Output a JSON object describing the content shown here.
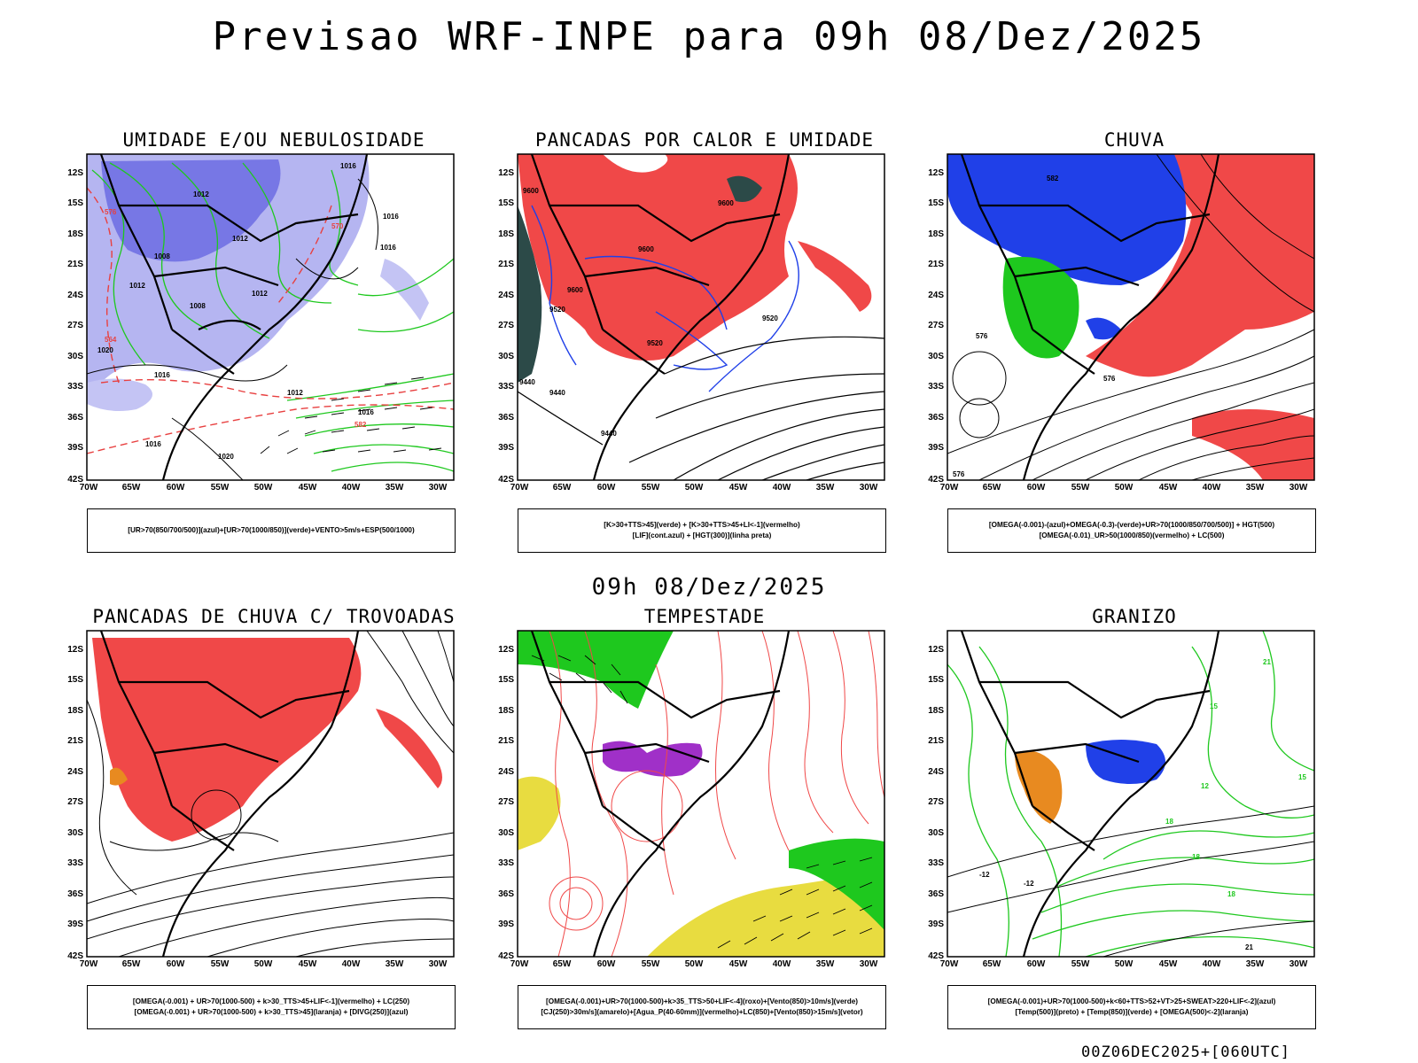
{
  "header": {
    "title": "Previsao WRF-INPE  para 09h 08/Dez/2025"
  },
  "mid_label": "09h 08/Dez/2025",
  "footer": {
    "stamp": "00Z06DEC2025+[060UTC]"
  },
  "axes": {
    "lat_labels": [
      "12S",
      "15S",
      "18S",
      "21S",
      "24S",
      "27S",
      "30S",
      "33S",
      "36S",
      "39S",
      "42S"
    ],
    "lon_labels": [
      "70W",
      "65W",
      "60W",
      "55W",
      "50W",
      "45W",
      "40W",
      "35W",
      "30W"
    ]
  },
  "colors": {
    "red_fill": "#f04848",
    "blue_fill": "#2040e8",
    "green": "#1ec81e",
    "lavender": "#a8a8ee",
    "yellow": "#e8dc40",
    "purple": "#a030c8",
    "orange": "#e88a20",
    "dark_teal": "#2c4a48"
  },
  "panels": [
    {
      "title": "UMIDADE E/OU NEBULOSIDADE",
      "legend": [
        "[UR>70(850/700/500)](azul)+[UR>70(1000/850)](verde)+VENTO>5m/s+ESP(500/1000)"
      ],
      "labels": [
        "1016",
        "1012",
        "1012",
        "1008",
        "1012",
        "1008",
        "1012",
        "1016",
        "1016",
        "1020",
        "1016",
        "1020",
        "1016",
        "1016",
        "570",
        "576",
        "564",
        "582",
        "1012"
      ]
    },
    {
      "title": "PANCADAS POR CALOR E UMIDADE",
      "legend": [
        "[K>30+TTS>45](verde) + [K>30+TTS>45+LI<-1](vermelho)",
        "[LIF](cont.azul) + [HGT(300)](linha preta)"
      ],
      "labels": [
        "9600",
        "9600",
        "9600",
        "9600",
        "9520",
        "9520",
        "9520",
        "9440",
        "9440",
        "9440"
      ]
    },
    {
      "title": "CHUVA",
      "legend": [
        "[OMEGA(-0.001)-(azul)+OMEGA(-0.3)-(verde)+UR>70(1000/850/700/500)] + HGT(500)",
        "[OMEGA(-0.01)_UR>50(1000/850)(vermelho) + LC(500)"
      ],
      "labels": [
        "582",
        "576",
        "576",
        "576"
      ]
    },
    {
      "title": "PANCADAS DE CHUVA C/ TROVOADAS",
      "legend": [
        "[OMEGA(-0.001) + UR>70(1000-500) + k>30_TTS>45+LIF<-1](vermelho) + LC(250)",
        "[OMEGA(-0.001) + UR>70(1000-500) + k>30_TTS>45](laranja) + [DIVG(250)](azul)"
      ],
      "labels": []
    },
    {
      "title": "TEMPESTADE",
      "legend": [
        "[OMEGA(-0.001)+UR>70(1000-500)+k>35_TTS>50+LIF<-4](roxo)+[Vento(850)>10m/s](verde)",
        "[CJ(250)>30m/s](amarelo)+[Agua_P(40-60mm)](vermelho)+LC(850)+[Vento(850)>15m/s](vetor)"
      ],
      "labels": []
    },
    {
      "title": "GRANIZO",
      "legend": [
        "[OMEGA(-0.001)+UR>70(1000-500)+k<60+TTS>52+VT>25+SWEAT>220+LIF<-2](azul)",
        "[Temp(500)](preto) + [Temp(850)](verde) + [OMEGA(500)<-2](laranja)"
      ],
      "labels": [
        "-12",
        "-12",
        "15",
        "18",
        "18",
        "21",
        "12",
        "15",
        "18",
        "21"
      ]
    }
  ]
}
